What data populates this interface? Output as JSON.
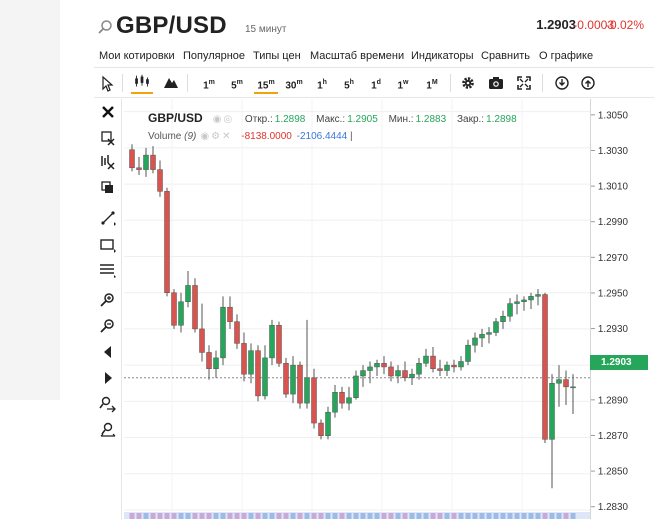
{
  "header": {
    "symbol": "GBP/USD",
    "interval": "15 минут",
    "last_price": "1.2903",
    "change": "-0.0003",
    "change_pct": "-0.02%"
  },
  "menu": [
    "Мои котировки",
    "Популярное",
    "Типы цен",
    "Масштаб времени",
    "Индикаторы",
    "Сравнить",
    "О графике"
  ],
  "toolbar": {
    "timeframes": [
      {
        "num": "1",
        "unit": "m"
      },
      {
        "num": "5",
        "unit": "m"
      },
      {
        "num": "15",
        "unit": "m"
      },
      {
        "num": "30",
        "unit": "m"
      },
      {
        "num": "1",
        "unit": "h"
      },
      {
        "num": "5",
        "unit": "h"
      },
      {
        "num": "1",
        "unit": "d"
      },
      {
        "num": "1",
        "unit": "w"
      },
      {
        "num": "1",
        "unit": "M"
      }
    ],
    "active_timeframe": "15m",
    "icons": [
      "cursor-icon",
      "candles-icon",
      "mountain-icon",
      "gear-icon",
      "camera-icon",
      "fullscreen-icon",
      "download-icon",
      "share-icon"
    ]
  },
  "sidebar_icons": [
    "close-icon",
    "delete-drawings-icon",
    "delete-indicators-icon",
    "copy-icon",
    "trendline-icon",
    "rectangle-icon",
    "fibonacci-icon",
    "zoom-in-icon",
    "zoom-out-icon",
    "scroll-left-icon",
    "scroll-right-icon",
    "zoom-fit-icon",
    "reset-zoom-icon"
  ],
  "legend": {
    "symbol": "GBP/USD",
    "open_label": "Откр.:",
    "open": "1.2898",
    "high_label": "Макс.:",
    "high": "1.2905",
    "low_label": "Мин.:",
    "low": "1.2883",
    "close_label": "Закр.:",
    "close": "1.2898",
    "volume_label": "Volume",
    "volume_param": "(9)",
    "volume_v1": "-8138.0000",
    "volume_v2": "-2106.4444",
    "volume_bar": "|"
  },
  "colors": {
    "up": "#26a65b",
    "down": "#d9534f",
    "negative_text": "#e0342f",
    "active_tab": "#f0a30a"
  },
  "price_tag": "1.2903",
  "chart_data": {
    "type": "candlestick",
    "y_tick_labels": [
      "1.3050",
      "1.3030",
      "1.3010",
      "1.2990",
      "1.2970",
      "1.2950",
      "1.2930",
      "1.2910",
      "1.2890",
      "1.2870",
      "1.2850",
      "1.2830"
    ],
    "ylim": [
      1.2825,
      1.3057
    ],
    "current_price": 1.2903,
    "candles": [
      [
        1.3029,
        1.3032,
        1.3017,
        1.3019
      ],
      [
        1.3019,
        1.3025,
        1.3015,
        1.3018
      ],
      [
        1.3018,
        1.303,
        1.3014,
        1.3026
      ],
      [
        1.3026,
        1.3031,
        1.3016,
        1.3018
      ],
      [
        1.3018,
        1.3023,
        1.3003,
        1.3006
      ],
      [
        1.3006,
        1.3008,
        1.2948,
        1.295
      ],
      [
        1.295,
        1.2952,
        1.293,
        1.2932
      ],
      [
        1.2932,
        1.295,
        1.2928,
        1.2945
      ],
      [
        1.2945,
        1.2962,
        1.2942,
        1.2954
      ],
      [
        1.2954,
        1.2958,
        1.2928,
        1.293
      ],
      [
        1.293,
        1.2944,
        1.2912,
        1.2917
      ],
      [
        1.2917,
        1.2921,
        1.2902,
        1.2908
      ],
      [
        1.2908,
        1.2918,
        1.2903,
        1.2914
      ],
      [
        1.2914,
        1.2948,
        1.291,
        1.2942
      ],
      [
        1.2942,
        1.2948,
        1.293,
        1.2934
      ],
      [
        1.2934,
        1.2938,
        1.2919,
        1.2922
      ],
      [
        1.2922,
        1.2928,
        1.2901,
        1.2905
      ],
      [
        1.2905,
        1.2922,
        1.29,
        1.2918
      ],
      [
        1.2918,
        1.2921,
        1.289,
        1.2893
      ],
      [
        1.2893,
        1.2921,
        1.2891,
        1.2914
      ],
      [
        1.2914,
        1.2935,
        1.291,
        1.2932
      ],
      [
        1.2932,
        1.2934,
        1.2909,
        1.2911
      ],
      [
        1.2911,
        1.2914,
        1.2892,
        1.2894
      ],
      [
        1.2894,
        1.2915,
        1.2889,
        1.291
      ],
      [
        1.291,
        1.2912,
        1.2886,
        1.2889
      ],
      [
        1.2889,
        1.2935,
        1.2886,
        1.2903
      ],
      [
        1.2903,
        1.2908,
        1.2875,
        1.2878
      ],
      [
        1.2878,
        1.288,
        1.2869,
        1.2871
      ],
      [
        1.2871,
        1.2887,
        1.2869,
        1.2884
      ],
      [
        1.2884,
        1.2899,
        1.2881,
        1.2895
      ],
      [
        1.2895,
        1.2898,
        1.2886,
        1.2889
      ],
      [
        1.2889,
        1.2898,
        1.2885,
        1.2892
      ],
      [
        1.2892,
        1.2907,
        1.2891,
        1.2904
      ],
      [
        1.2904,
        1.291,
        1.2898,
        1.2907
      ],
      [
        1.2907,
        1.2912,
        1.29,
        1.2909
      ],
      [
        1.2909,
        1.2913,
        1.2904,
        1.2911
      ],
      [
        1.2911,
        1.2915,
        1.2905,
        1.2909
      ],
      [
        1.2909,
        1.2912,
        1.2901,
        1.2904
      ],
      [
        1.2904,
        1.291,
        1.29,
        1.2907
      ],
      [
        1.2907,
        1.2912,
        1.2901,
        1.2903
      ],
      [
        1.2903,
        1.2908,
        1.2899,
        1.2905
      ],
      [
        1.2905,
        1.2914,
        1.2902,
        1.2911
      ],
      [
        1.2911,
        1.2919,
        1.2909,
        1.2915
      ],
      [
        1.2915,
        1.292,
        1.2906,
        1.2908
      ],
      [
        1.2908,
        1.2913,
        1.2904,
        1.2907
      ],
      [
        1.2907,
        1.2912,
        1.2904,
        1.291
      ],
      [
        1.291,
        1.2913,
        1.2906,
        1.2909
      ],
      [
        1.2909,
        1.2915,
        1.2907,
        1.2912
      ],
      [
        1.2912,
        1.2924,
        1.291,
        1.2921
      ],
      [
        1.2921,
        1.2928,
        1.2917,
        1.2925
      ],
      [
        1.2925,
        1.293,
        1.292,
        1.2927
      ],
      [
        1.2927,
        1.2931,
        1.2922,
        1.2928
      ],
      [
        1.2928,
        1.2936,
        1.2926,
        1.2934
      ],
      [
        1.2934,
        1.294,
        1.293,
        1.2937
      ],
      [
        1.2937,
        1.2947,
        1.2934,
        1.2944
      ],
      [
        1.2944,
        1.2949,
        1.2938,
        1.2945
      ],
      [
        1.2945,
        1.2948,
        1.294,
        1.2946
      ],
      [
        1.2946,
        1.295,
        1.2941,
        1.2948
      ],
      [
        1.2948,
        1.2952,
        1.2943,
        1.2949
      ],
      [
        1.2949,
        1.295,
        1.2867,
        1.2869
      ],
      [
        1.2869,
        1.2905,
        1.2842,
        1.29
      ],
      [
        1.29,
        1.291,
        1.2887,
        1.2902
      ],
      [
        1.2902,
        1.2907,
        1.2888,
        1.2898
      ],
      [
        1.2898,
        1.2905,
        1.2883,
        1.2898
      ]
    ]
  }
}
